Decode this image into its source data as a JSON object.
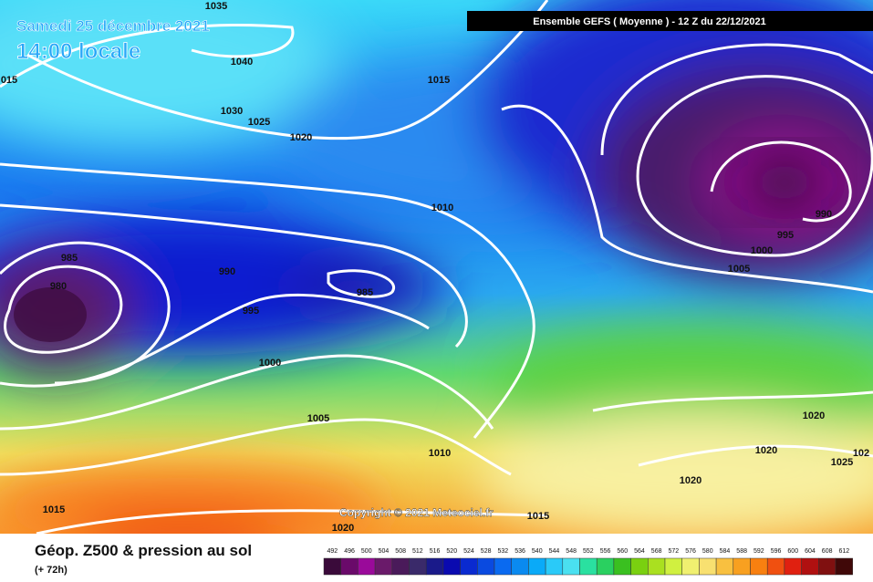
{
  "header": {
    "date": "Samedi 25 décembre 2021",
    "time": "14:00 locale",
    "run_info": "Ensemble GEFS  ( Moyenne )  -  12 Z du 22/12/2021"
  },
  "map": {
    "copyright": "Copyright © 2021 Meteociel.fr",
    "isobar_labels": [
      "1035",
      "1040",
      "1030",
      "1025",
      "1020",
      "1015",
      "015",
      "1010",
      "985",
      "980",
      "990",
      "985",
      "995",
      "1000",
      "1005",
      "1010",
      "1015",
      "1020",
      "1015",
      "990",
      "995",
      "1000",
      "1005",
      "1020",
      "1020",
      "1025",
      "102",
      "1020"
    ]
  },
  "footer": {
    "title": "Géop. Z500 & pression au sol",
    "subtitle": "(+ 72h)",
    "scale": {
      "values": [
        492,
        496,
        500,
        504,
        508,
        512,
        516,
        520,
        524,
        528,
        532,
        536,
        540,
        544,
        548,
        552,
        556,
        560,
        564,
        568,
        572,
        576,
        580,
        584,
        588,
        592,
        596,
        600,
        604,
        608,
        612
      ],
      "colors": [
        "#3a0a3a",
        "#6a0a6a",
        "#9a0a9a",
        "#6a1a6a",
        "#4a1a5a",
        "#3a2a6a",
        "#1a1a8a",
        "#0a0ab0",
        "#0a2ad0",
        "#0a4ae0",
        "#0a6af0",
        "#0a8af0",
        "#0aaaf8",
        "#2acaf8",
        "#4ae0f0",
        "#2ae0a0",
        "#2ad060",
        "#3ac020",
        "#7ad010",
        "#aae020",
        "#d0f040",
        "#f0f070",
        "#f8e070",
        "#f8c040",
        "#f8a020",
        "#f88010",
        "#f05010",
        "#e02010",
        "#b01010",
        "#801010",
        "#400808"
      ]
    }
  }
}
